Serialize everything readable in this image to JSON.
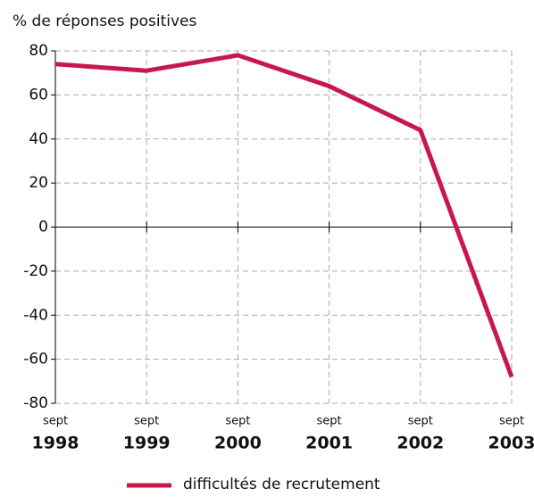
{
  "chart_data": {
    "type": "line",
    "y_axis_label": "% de réponses positives",
    "categories": [
      {
        "month": "sept",
        "year": "1998"
      },
      {
        "month": "sept",
        "year": "1999"
      },
      {
        "month": "sept",
        "year": "2000"
      },
      {
        "month": "sept",
        "year": "2001"
      },
      {
        "month": "sept",
        "year": "2002"
      },
      {
        "month": "sept",
        "year": "2003"
      }
    ],
    "series": [
      {
        "name": "difficultés de recrutement",
        "color": "#c8174a",
        "values": [
          74,
          71,
          78,
          64,
          44,
          -68
        ]
      }
    ],
    "ylim": [
      -80,
      80
    ],
    "yticks": [
      -80,
      -60,
      -40,
      -20,
      0,
      20,
      40,
      60,
      80
    ],
    "grid": true
  }
}
